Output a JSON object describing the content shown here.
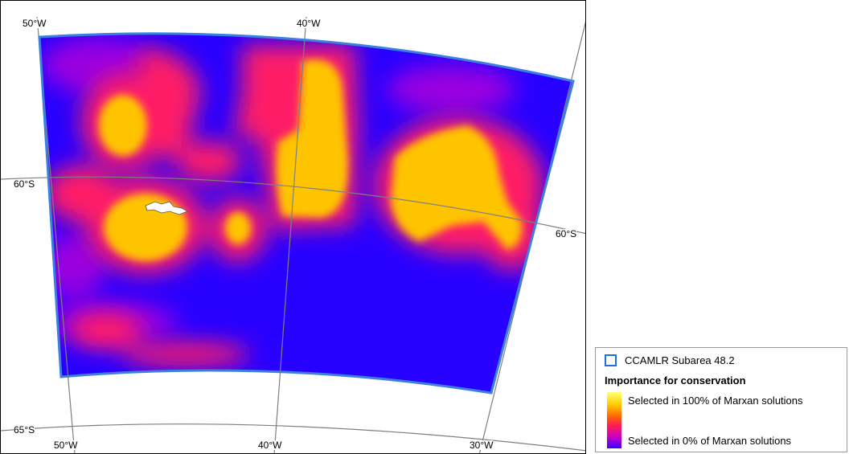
{
  "map": {
    "longitude_labels_top": [
      "50°W",
      "40°W"
    ],
    "longitude_labels_bottom": [
      "50°W",
      "40°W",
      "30°W"
    ],
    "latitude_labels_left": [
      "60°S",
      "65°S"
    ],
    "latitude_label_right": "60°S",
    "colors": {
      "ocean_low": "#2800ff",
      "mid": "#ff1a66",
      "high": "#ffcc00",
      "boundary": "#3c7fe0",
      "grid": "#7f7f7f"
    }
  },
  "legend": {
    "boundary_label": "CCAMLR Subarea 48.2",
    "title": "Importance for conservation",
    "high_label": "Selected in 100% of Marxan solutions",
    "low_label": "Selected in 0% of Marxan solutions"
  }
}
